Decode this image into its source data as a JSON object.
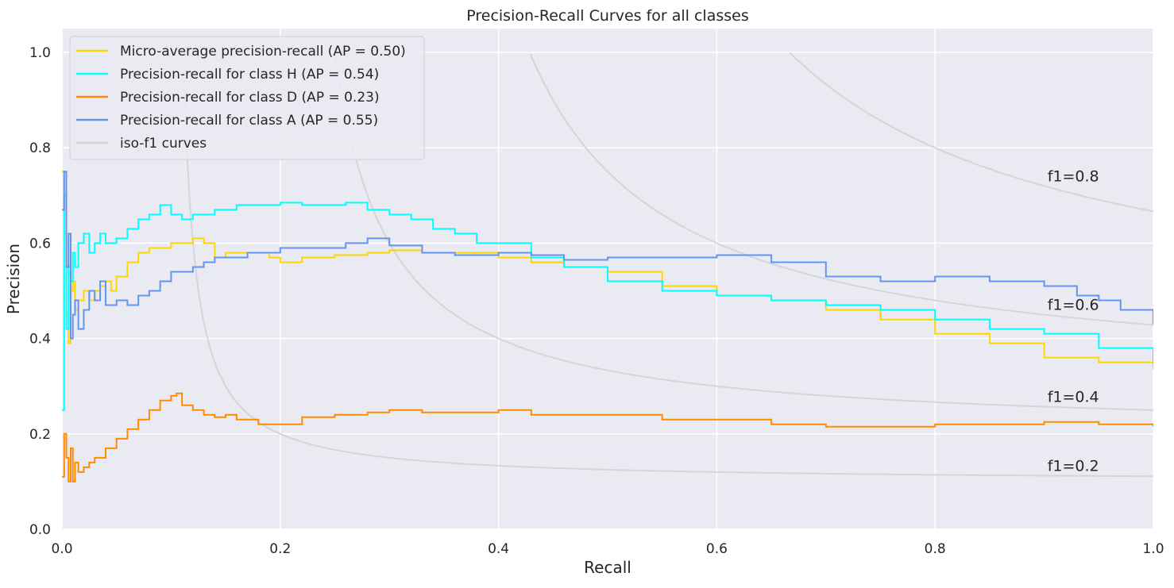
{
  "chart_data": {
    "type": "line",
    "title": "Precision-Recall Curves for all classes",
    "xlabel": "Recall",
    "ylabel": "Precision",
    "xlim": [
      0.0,
      1.0
    ],
    "ylim": [
      0.0,
      1.05
    ],
    "xticks": [
      "0.0",
      "0.2",
      "0.4",
      "0.6",
      "0.8",
      "1.0"
    ],
    "yticks": [
      "0.0",
      "0.2",
      "0.4",
      "0.6",
      "0.8",
      "1.0"
    ],
    "grid": true,
    "legend_position": "top-left",
    "background": "#eaeaf2",
    "series": [
      {
        "name": "Micro-average precision-recall (AP = 0.50)",
        "color": "#ffd700",
        "x": [
          0.0,
          0.002,
          0.004,
          0.006,
          0.008,
          0.01,
          0.012,
          0.015,
          0.02,
          0.025,
          0.03,
          0.035,
          0.04,
          0.045,
          0.05,
          0.06,
          0.07,
          0.08,
          0.09,
          0.1,
          0.11,
          0.12,
          0.13,
          0.14,
          0.15,
          0.17,
          0.19,
          0.2,
          0.22,
          0.25,
          0.28,
          0.3,
          0.33,
          0.36,
          0.4,
          0.43,
          0.46,
          0.5,
          0.55,
          0.6,
          0.65,
          0.7,
          0.75,
          0.8,
          0.85,
          0.9,
          0.95,
          1.0
        ],
        "y": [
          0.75,
          0.62,
          0.45,
          0.39,
          0.5,
          0.52,
          0.46,
          0.48,
          0.5,
          0.48,
          0.5,
          0.51,
          0.52,
          0.5,
          0.53,
          0.56,
          0.58,
          0.59,
          0.59,
          0.6,
          0.6,
          0.61,
          0.6,
          0.57,
          0.58,
          0.58,
          0.57,
          0.56,
          0.57,
          0.575,
          0.58,
          0.585,
          0.58,
          0.58,
          0.57,
          0.56,
          0.55,
          0.54,
          0.51,
          0.49,
          0.48,
          0.46,
          0.44,
          0.41,
          0.39,
          0.36,
          0.35,
          0.335
        ]
      },
      {
        "name": "Precision-recall for class H (AP = 0.54)",
        "color": "#00ffff",
        "x": [
          0.0,
          0.002,
          0.004,
          0.006,
          0.008,
          0.01,
          0.012,
          0.015,
          0.02,
          0.025,
          0.03,
          0.035,
          0.04,
          0.05,
          0.06,
          0.07,
          0.08,
          0.09,
          0.1,
          0.11,
          0.12,
          0.14,
          0.16,
          0.18,
          0.2,
          0.22,
          0.24,
          0.26,
          0.28,
          0.3,
          0.32,
          0.34,
          0.36,
          0.38,
          0.4,
          0.43,
          0.46,
          0.5,
          0.55,
          0.6,
          0.65,
          0.7,
          0.75,
          0.8,
          0.85,
          0.9,
          0.95,
          1.0
        ],
        "y": [
          0.25,
          0.7,
          0.42,
          0.55,
          0.52,
          0.58,
          0.55,
          0.6,
          0.62,
          0.58,
          0.6,
          0.62,
          0.6,
          0.61,
          0.63,
          0.65,
          0.66,
          0.68,
          0.66,
          0.65,
          0.66,
          0.67,
          0.68,
          0.68,
          0.685,
          0.68,
          0.68,
          0.685,
          0.67,
          0.66,
          0.65,
          0.63,
          0.62,
          0.6,
          0.6,
          0.57,
          0.55,
          0.52,
          0.5,
          0.49,
          0.48,
          0.47,
          0.46,
          0.44,
          0.42,
          0.41,
          0.38,
          0.345
        ]
      },
      {
        "name": "Precision-recall for class D (AP = 0.23)",
        "color": "#ff8c00",
        "x": [
          0.0,
          0.002,
          0.004,
          0.006,
          0.008,
          0.01,
          0.012,
          0.015,
          0.02,
          0.025,
          0.03,
          0.04,
          0.05,
          0.06,
          0.07,
          0.08,
          0.09,
          0.1,
          0.105,
          0.11,
          0.12,
          0.13,
          0.14,
          0.15,
          0.16,
          0.18,
          0.2,
          0.22,
          0.25,
          0.28,
          0.3,
          0.33,
          0.36,
          0.4,
          0.43,
          0.46,
          0.5,
          0.52,
          0.55,
          0.6,
          0.65,
          0.7,
          0.75,
          0.8,
          0.85,
          0.9,
          0.95,
          1.0
        ],
        "y": [
          0.11,
          0.2,
          0.15,
          0.1,
          0.17,
          0.1,
          0.14,
          0.12,
          0.13,
          0.14,
          0.15,
          0.17,
          0.19,
          0.21,
          0.23,
          0.25,
          0.27,
          0.28,
          0.285,
          0.26,
          0.25,
          0.24,
          0.235,
          0.24,
          0.23,
          0.22,
          0.22,
          0.235,
          0.24,
          0.245,
          0.25,
          0.245,
          0.245,
          0.25,
          0.24,
          0.24,
          0.24,
          0.24,
          0.23,
          0.23,
          0.22,
          0.215,
          0.215,
          0.22,
          0.22,
          0.225,
          0.22,
          0.215
        ]
      },
      {
        "name": "Precision-recall for class A (AP = 0.55)",
        "color": "#6495ed",
        "x": [
          0.0,
          0.002,
          0.004,
          0.006,
          0.008,
          0.01,
          0.012,
          0.015,
          0.02,
          0.025,
          0.03,
          0.035,
          0.04,
          0.05,
          0.06,
          0.07,
          0.08,
          0.09,
          0.1,
          0.11,
          0.12,
          0.13,
          0.14,
          0.15,
          0.17,
          0.2,
          0.23,
          0.26,
          0.28,
          0.3,
          0.33,
          0.36,
          0.4,
          0.43,
          0.46,
          0.5,
          0.55,
          0.6,
          0.65,
          0.7,
          0.75,
          0.8,
          0.85,
          0.9,
          0.93,
          0.95,
          0.97,
          1.0
        ],
        "y": [
          0.67,
          0.75,
          0.55,
          0.62,
          0.4,
          0.45,
          0.48,
          0.42,
          0.46,
          0.5,
          0.48,
          0.52,
          0.47,
          0.48,
          0.47,
          0.49,
          0.5,
          0.52,
          0.54,
          0.54,
          0.55,
          0.56,
          0.57,
          0.57,
          0.58,
          0.59,
          0.59,
          0.6,
          0.61,
          0.595,
          0.58,
          0.575,
          0.58,
          0.575,
          0.565,
          0.57,
          0.57,
          0.575,
          0.56,
          0.53,
          0.52,
          0.53,
          0.52,
          0.51,
          0.49,
          0.48,
          0.46,
          0.43
        ]
      }
    ],
    "iso_f1": {
      "legend_label": "iso-f1 curves",
      "color": "#d4d4d9",
      "values": [
        0.2,
        0.4,
        0.6,
        0.8
      ],
      "labels": [
        "f1=0.2",
        "f1=0.4",
        "f1=0.6",
        "f1=0.8"
      ]
    }
  }
}
